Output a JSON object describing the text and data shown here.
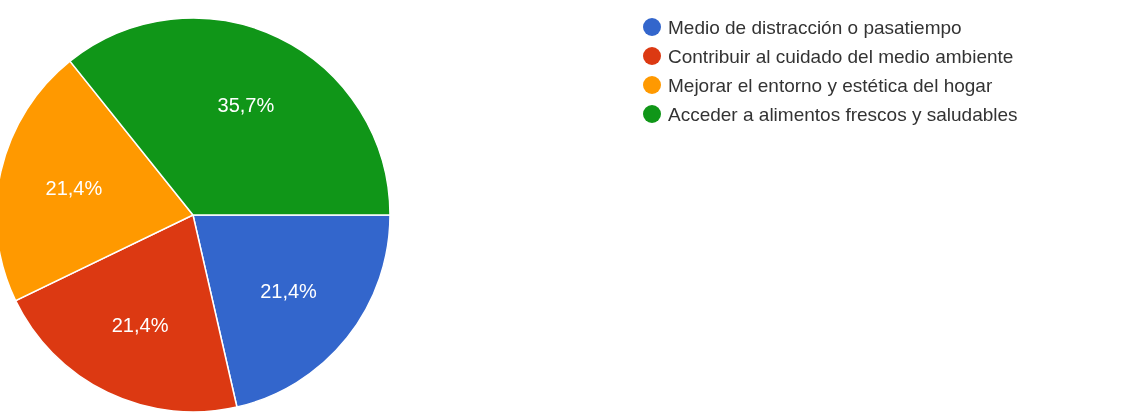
{
  "chart_data": {
    "type": "pie",
    "categories": [
      "Medio de distracción o pasatiempo",
      "Contribuir al cuidado del medio ambiente",
      "Mejorar el entorno y estética del hogar",
      "Acceder a alimentos frescos y saludables"
    ],
    "values": [
      21.4,
      21.4,
      21.4,
      35.7
    ],
    "colors": [
      "#3366cc",
      "#dc3912",
      "#ff9900",
      "#109618"
    ],
    "value_labels": [
      "21,4%",
      "21,4%",
      "21,4%",
      "35,7%"
    ],
    "legend": "right"
  }
}
